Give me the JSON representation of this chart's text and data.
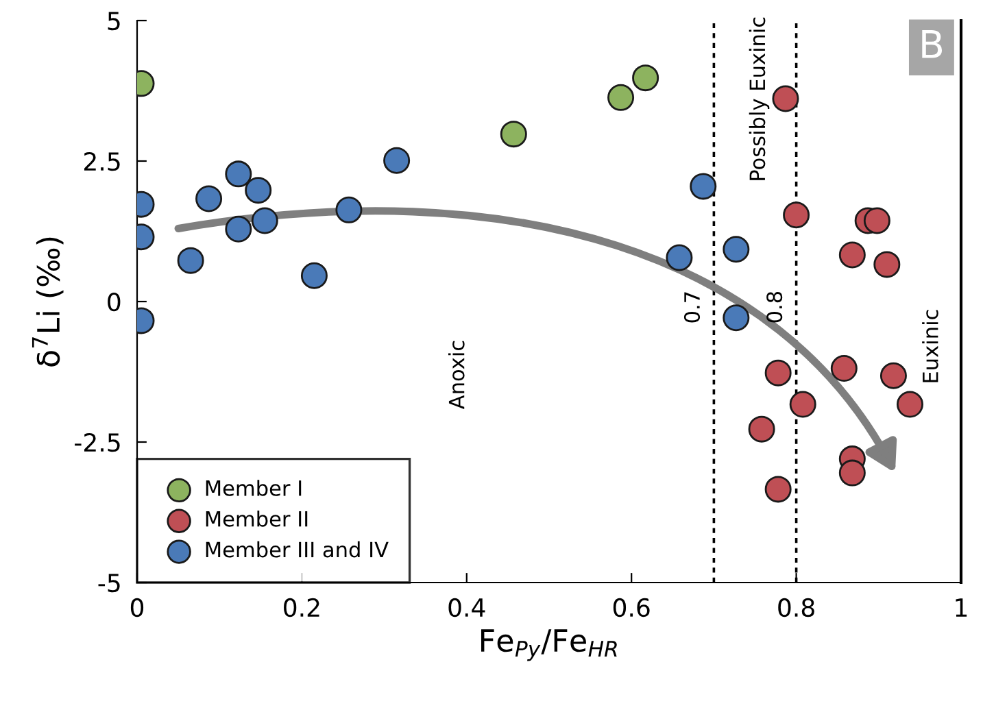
{
  "chart_data": {
    "type": "scatter",
    "xlabel": "Fe$_{Py}$/Fe$_{HR}$",
    "ylabel": "δ$^{7}$Li (‰)",
    "xlim": [
      0,
      1
    ],
    "xticks": [
      0,
      0.2,
      0.4,
      0.6,
      0.8,
      1
    ],
    "ylim": [
      -5,
      5
    ],
    "yticks": [
      {
        "value": -5,
        "label": "-5"
      },
      {
        "value": -2.5,
        "label": "-2.5"
      },
      0,
      2.5,
      5
    ],
    "grid": false,
    "legend": "bottom left",
    "marker": "circle",
    "series": [
      {
        "name": "Member I",
        "color": "#8db35f",
        "x": [
          0.005,
          0.457,
          0.587,
          0.617
        ],
        "values": [
          3.88,
          2.98,
          3.63,
          3.98
        ]
      },
      {
        "name": "Member II",
        "color": "#bf4f55",
        "x": [
          0.787,
          0.8,
          0.887,
          0.898,
          0.868,
          0.91,
          0.778,
          0.858,
          0.918,
          0.808,
          0.938,
          0.758,
          0.868,
          0.868,
          0.778
        ],
        "values": [
          3.61,
          1.54,
          1.44,
          1.44,
          0.83,
          0.66,
          -1.27,
          -1.19,
          -1.32,
          -1.83,
          -1.83,
          -2.27,
          -2.8,
          -3.05,
          -3.34
        ]
      },
      {
        "name": "Member III and IV",
        "color": "#4a7ab8",
        "x": [
          0.005,
          0.005,
          0.005,
          0.065,
          0.087,
          0.123,
          0.123,
          0.147,
          0.155,
          0.215,
          0.257,
          0.315,
          0.687,
          0.658,
          0.727,
          0.727
        ],
        "values": [
          1.73,
          1.15,
          -0.34,
          0.73,
          1.83,
          2.27,
          1.29,
          1.98,
          1.44,
          0.46,
          1.63,
          2.51,
          2.05,
          0.78,
          0.93,
          -0.29
        ]
      }
    ],
    "ref_lines": [
      {
        "axis": "x",
        "value": 0.7,
        "label": "0.7",
        "line_style": "dotted",
        "color": "#000000"
      },
      {
        "axis": "x",
        "value": 0.8,
        "label": "0.8",
        "line_style": "dotted",
        "color": "#000000"
      }
    ],
    "annotations": [
      "Anoxic",
      "Possibly Euxinic",
      "Euxinic",
      "B"
    ]
  }
}
